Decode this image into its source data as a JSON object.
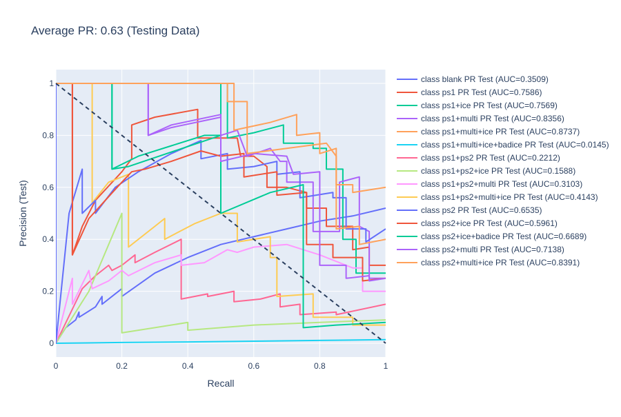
{
  "chart_data": {
    "type": "line",
    "title": "Average PR: 0.63 (Testing Data)",
    "xlabel": "Recall",
    "ylabel": "Precision (Test)",
    "xlim": [
      0,
      1
    ],
    "ylim": [
      0,
      1
    ],
    "xticks": [
      0,
      0.2,
      0.4,
      0.6,
      0.8,
      1
    ],
    "xtick_labels": [
      "0",
      "0.2",
      "0.4",
      "0.6",
      "0.8",
      "1"
    ],
    "yticks": [
      0,
      0.2,
      0.4,
      0.6,
      0.8,
      1
    ],
    "ytick_labels": [
      "0",
      "0.2",
      "0.4",
      "0.6",
      "0.8",
      "1"
    ],
    "grid": true,
    "legend_position": "right",
    "reference_line": {
      "x": [
        0,
        1
      ],
      "y": [
        1,
        0
      ],
      "color": "#2a3f5f",
      "dash": "dashed"
    },
    "series": [
      {
        "name": "class blank PR Test (AUC=0.3509)",
        "color": "#636efa",
        "points": [
          [
            0,
            0
          ],
          [
            0.03,
            0.06
          ],
          [
            0.06,
            0.09
          ],
          [
            0.07,
            0.12
          ],
          [
            0.07,
            0.1
          ],
          [
            0.12,
            0.14
          ],
          [
            0.14,
            0.18
          ],
          [
            0.14,
            0.15
          ],
          [
            0.2,
            0.21
          ],
          [
            0.2,
            0.18
          ],
          [
            0.3,
            0.27
          ],
          [
            0.4,
            0.33
          ],
          [
            0.5,
            0.38
          ],
          [
            0.6,
            0.41
          ],
          [
            0.7,
            0.44
          ],
          [
            0.8,
            0.47
          ],
          [
            0.9,
            0.49
          ],
          [
            1,
            0.52
          ]
        ]
      },
      {
        "name": "class ps1 PR Test (AUC=0.7586)",
        "color": "#ef553b",
        "points": [
          [
            0,
            1
          ],
          [
            0.05,
            1
          ],
          [
            0.05,
            0.34
          ],
          [
            0.08,
            0.45
          ],
          [
            0.12,
            0.55
          ],
          [
            0.2,
            0.66
          ],
          [
            0.23,
            0.71
          ],
          [
            0.23,
            0.84
          ],
          [
            0.3,
            0.87
          ],
          [
            0.43,
            0.9
          ],
          [
            0.43,
            0.79
          ],
          [
            0.55,
            0.79
          ],
          [
            0.56,
            0.72
          ],
          [
            0.6,
            0.72
          ],
          [
            0.64,
            0.68
          ],
          [
            0.64,
            0.6
          ],
          [
            0.7,
            0.6
          ],
          [
            0.76,
            0.58
          ],
          [
            0.76,
            0.52
          ],
          [
            0.82,
            0.52
          ],
          [
            0.82,
            0.45
          ],
          [
            0.9,
            0.45
          ],
          [
            0.9,
            0.36
          ],
          [
            0.95,
            0.37
          ],
          [
            0.95,
            0.3
          ],
          [
            1,
            0.3
          ]
        ]
      },
      {
        "name": "class ps1+ice PR Test (AUC=0.7569)",
        "color": "#00cc96",
        "points": [
          [
            0,
            1
          ],
          [
            0.17,
            1
          ],
          [
            0.17,
            0.67
          ],
          [
            0.25,
            0.72
          ],
          [
            0.35,
            0.76
          ],
          [
            0.45,
            0.8
          ],
          [
            0.5,
            0.8
          ],
          [
            0.5,
            1
          ],
          [
            0.52,
            1
          ],
          [
            0.52,
            0.79
          ],
          [
            0.6,
            0.81
          ],
          [
            0.69,
            0.84
          ],
          [
            0.69,
            0.77
          ],
          [
            0.78,
            0.77
          ],
          [
            0.78,
            0.75
          ],
          [
            0.82,
            0.75
          ],
          [
            0.82,
            0.67
          ],
          [
            0.87,
            0.67
          ],
          [
            0.87,
            0.4
          ],
          [
            0.91,
            0.4
          ],
          [
            0.91,
            0.27
          ],
          [
            1,
            0.27
          ]
        ]
      },
      {
        "name": "class ps1+multi PR Test (AUC=0.8356)",
        "color": "#ab63fa",
        "points": [
          [
            0,
            1
          ],
          [
            0.28,
            1
          ],
          [
            0.28,
            0.8
          ],
          [
            0.35,
            0.84
          ],
          [
            0.5,
            0.88
          ],
          [
            0.5,
            0.8
          ],
          [
            0.55,
            0.82
          ],
          [
            0.58,
            0.72
          ],
          [
            0.65,
            0.75
          ],
          [
            0.68,
            0.7
          ],
          [
            0.7,
            0.7
          ],
          [
            0.7,
            0.62
          ],
          [
            0.78,
            0.62
          ],
          [
            0.78,
            0.43
          ],
          [
            0.86,
            0.43
          ],
          [
            0.86,
            0.62
          ],
          [
            0.92,
            0.64
          ],
          [
            0.92,
            0.45
          ],
          [
            0.95,
            0.43
          ],
          [
            0.95,
            0.25
          ],
          [
            1,
            0.25
          ]
        ]
      },
      {
        "name": "class ps1+multi+ice PR Test (AUC=0.8737)",
        "color": "#ffa15a",
        "points": [
          [
            0,
            1
          ],
          [
            0.54,
            1
          ],
          [
            0.54,
            0.82
          ],
          [
            0.65,
            0.85
          ],
          [
            0.73,
            0.88
          ],
          [
            0.73,
            0.8
          ],
          [
            0.8,
            0.81
          ],
          [
            0.8,
            0.73
          ],
          [
            0.85,
            0.75
          ],
          [
            0.85,
            0.61
          ],
          [
            0.9,
            0.61
          ],
          [
            0.9,
            0.58
          ],
          [
            1,
            0.6
          ]
        ]
      },
      {
        "name": "class ps1+multi+ice+badice PR Test (AUC=0.0145)",
        "color": "#19d3f3",
        "points": [
          [
            0,
            0
          ],
          [
            0.2,
            0.003
          ],
          [
            0.4,
            0.005
          ],
          [
            0.6,
            0.008
          ],
          [
            0.8,
            0.011
          ],
          [
            1,
            0.014
          ]
        ]
      },
      {
        "name": "class ps1+ps2 PR Test (AUC=0.2212)",
        "color": "#ff6692",
        "points": [
          [
            0,
            0
          ],
          [
            0.08,
            0.21
          ],
          [
            0.12,
            0.26
          ],
          [
            0.16,
            0.3
          ],
          [
            0.17,
            0.28
          ],
          [
            0.2,
            0.3
          ],
          [
            0.24,
            0.34
          ],
          [
            0.24,
            0.31
          ],
          [
            0.3,
            0.35
          ],
          [
            0.38,
            0.4
          ],
          [
            0.38,
            0.17
          ],
          [
            0.46,
            0.19
          ],
          [
            0.46,
            0.18
          ],
          [
            0.54,
            0.2
          ],
          [
            0.54,
            0.16
          ],
          [
            0.62,
            0.17
          ],
          [
            0.68,
            0.19
          ],
          [
            0.68,
            0.14
          ],
          [
            0.74,
            0.15
          ],
          [
            0.74,
            0.11
          ],
          [
            0.85,
            0.12
          ],
          [
            0.85,
            0.11
          ],
          [
            1,
            0.15
          ]
        ]
      },
      {
        "name": "class ps1+ps2+ice PR Test (AUC=0.1588)",
        "color": "#b6e880",
        "points": [
          [
            0,
            0
          ],
          [
            0.1,
            0.2
          ],
          [
            0.2,
            0.5
          ],
          [
            0.2,
            0.04
          ],
          [
            0.3,
            0.06
          ],
          [
            0.4,
            0.08
          ],
          [
            0.4,
            0.05
          ],
          [
            0.6,
            0.07
          ],
          [
            0.8,
            0.08
          ],
          [
            1,
            0.09
          ]
        ]
      },
      {
        "name": "class ps1+ps2+multi PR Test (AUC=0.3103)",
        "color": "#ff97ff",
        "points": [
          [
            0,
            0
          ],
          [
            0.05,
            0.25
          ],
          [
            0.05,
            0.15
          ],
          [
            0.1,
            0.28
          ],
          [
            0.11,
            0.21
          ],
          [
            0.16,
            0.24
          ],
          [
            0.2,
            0.28
          ],
          [
            0.22,
            0.26
          ],
          [
            0.3,
            0.31
          ],
          [
            0.38,
            0.34
          ],
          [
            0.38,
            0.3
          ],
          [
            0.45,
            0.31
          ],
          [
            0.52,
            0.36
          ],
          [
            0.55,
            0.35
          ],
          [
            0.6,
            0.37
          ],
          [
            0.7,
            0.38
          ],
          [
            0.8,
            0.34
          ],
          [
            0.9,
            0.29
          ],
          [
            0.93,
            0.29
          ],
          [
            0.93,
            0.2
          ],
          [
            1,
            0.2
          ]
        ]
      },
      {
        "name": "class ps1+ps2+multi+ice PR Test (AUC=0.4143)",
        "color": "#fecb52",
        "points": [
          [
            0,
            1
          ],
          [
            0.11,
            1
          ],
          [
            0.11,
            0.54
          ],
          [
            0.16,
            0.62
          ],
          [
            0.22,
            0.65
          ],
          [
            0.22,
            0.37
          ],
          [
            0.3,
            0.45
          ],
          [
            0.33,
            0.48
          ],
          [
            0.33,
            0.4
          ],
          [
            0.42,
            0.46
          ],
          [
            0.5,
            0.5
          ],
          [
            0.55,
            0.5
          ],
          [
            0.55,
            0.39
          ],
          [
            0.65,
            0.41
          ],
          [
            0.65,
            0.33
          ],
          [
            0.67,
            0.33
          ],
          [
            0.67,
            0.18
          ],
          [
            0.78,
            0.19
          ],
          [
            0.78,
            0.1
          ],
          [
            0.9,
            0.1
          ],
          [
            0.9,
            0.07
          ],
          [
            1,
            0.07
          ]
        ]
      },
      {
        "name": "class ps2 PR Test (AUC=0.6535)",
        "color": "#636efa",
        "points": [
          [
            0,
            1
          ],
          [
            0,
            0
          ],
          [
            0.04,
            0.5
          ],
          [
            0.08,
            0.67
          ],
          [
            0.08,
            0.5
          ],
          [
            0.12,
            0.55
          ],
          [
            0.12,
            0.5
          ],
          [
            0.18,
            0.6
          ],
          [
            0.25,
            0.66
          ],
          [
            0.35,
            0.73
          ],
          [
            0.44,
            0.78
          ],
          [
            0.44,
            0.71
          ],
          [
            0.52,
            0.73
          ],
          [
            0.52,
            0.67
          ],
          [
            0.6,
            0.68
          ],
          [
            0.67,
            0.7
          ],
          [
            0.67,
            0.65
          ],
          [
            0.74,
            0.66
          ],
          [
            0.74,
            0.56
          ],
          [
            0.84,
            0.58
          ],
          [
            0.84,
            0.56
          ],
          [
            0.88,
            0.56
          ],
          [
            0.88,
            0.44
          ],
          [
            0.94,
            0.44
          ],
          [
            0.94,
            0.39
          ],
          [
            1,
            0.44
          ]
        ]
      },
      {
        "name": "class ps2+ice PR Test (AUC=0.5961)",
        "color": "#ef553b",
        "points": [
          [
            0,
            1
          ],
          [
            0.05,
            1
          ],
          [
            0.05,
            0.34
          ],
          [
            0.1,
            0.48
          ],
          [
            0.15,
            0.55
          ],
          [
            0.2,
            0.62
          ],
          [
            0.23,
            0.66
          ],
          [
            0.27,
            0.67
          ],
          [
            0.35,
            0.7
          ],
          [
            0.44,
            0.74
          ],
          [
            0.5,
            0.72
          ],
          [
            0.57,
            0.73
          ],
          [
            0.57,
            0.64
          ],
          [
            0.67,
            0.66
          ],
          [
            0.67,
            0.57
          ],
          [
            0.76,
            0.58
          ],
          [
            0.76,
            0.38
          ],
          [
            0.84,
            0.38
          ],
          [
            0.84,
            0.33
          ],
          [
            0.93,
            0.33
          ],
          [
            0.93,
            0.24
          ],
          [
            1,
            0.25
          ]
        ]
      },
      {
        "name": "class ps2+ice+badice PR Test (AUC=0.6689)",
        "color": "#00cc96",
        "points": [
          [
            0,
            1
          ],
          [
            0.17,
            1
          ],
          [
            0.17,
            0.67
          ],
          [
            0.22,
            0.68
          ],
          [
            0.5,
            0.8
          ],
          [
            0.5,
            0.5
          ],
          [
            0.65,
            0.58
          ],
          [
            0.75,
            0.61
          ],
          [
            0.75,
            0.06
          ],
          [
            0.85,
            0.07
          ],
          [
            1,
            0.08
          ]
        ]
      },
      {
        "name": "class ps2+multi PR Test (AUC=0.7138)",
        "color": "#ab63fa",
        "points": [
          [
            0,
            1
          ],
          [
            0.28,
            1
          ],
          [
            0.28,
            0.8
          ],
          [
            0.35,
            0.83
          ],
          [
            0.5,
            0.87
          ],
          [
            0.5,
            0.7
          ],
          [
            0.6,
            0.73
          ],
          [
            0.7,
            0.72
          ],
          [
            0.72,
            0.65
          ],
          [
            0.8,
            0.66
          ],
          [
            0.8,
            0.3
          ],
          [
            0.88,
            0.3
          ],
          [
            0.88,
            0.25
          ],
          [
            0.95,
            0.26
          ],
          [
            0.95,
            0.24
          ],
          [
            1,
            0.25
          ]
        ]
      },
      {
        "name": "class ps2+multi+ice PR Test (AUC=0.8391)",
        "color": "#ffa15a",
        "points": [
          [
            0,
            1
          ],
          [
            0.52,
            1
          ],
          [
            0.52,
            0.93
          ],
          [
            0.58,
            0.93
          ],
          [
            0.58,
            0.73
          ],
          [
            0.7,
            0.75
          ],
          [
            0.82,
            0.77
          ],
          [
            0.85,
            0.72
          ],
          [
            0.85,
            0.44
          ],
          [
            0.92,
            0.45
          ],
          [
            0.92,
            0.38
          ],
          [
            1,
            0.4
          ]
        ]
      }
    ]
  }
}
